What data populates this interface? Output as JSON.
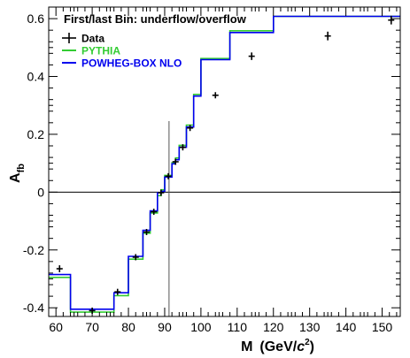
{
  "chart_data": {
    "type": "line",
    "title": "First/last Bin: underflow/overflow",
    "xlabel_main": "M",
    "xlabel_unit_open": "(GeV/",
    "xlabel_unit_c": "c",
    "xlabel_unit_exp": "2",
    "xlabel_unit_close": ")",
    "ylabel_main": "A",
    "ylabel_sub": "fb",
    "xlim": [
      58,
      155
    ],
    "ylim": [
      -0.43,
      0.64
    ],
    "xticks": [
      60,
      70,
      80,
      90,
      100,
      110,
      120,
      130,
      140,
      150
    ],
    "yticks": [
      -0.4,
      -0.2,
      0,
      0.2,
      0.4,
      0.6
    ],
    "ytick_labels": [
      "-0.4",
      "-0.2",
      "0",
      "0.2",
      "0.4",
      "0.6"
    ],
    "vertical_marker_x": 91.2,
    "horizontal_marker_y": 0,
    "legend": {
      "position": "top-left",
      "entries": [
        {
          "label": "Data",
          "color": "#000000",
          "style": "cross"
        },
        {
          "label": "PYTHIA",
          "color": "#33cc33",
          "style": "line"
        },
        {
          "label": "POWHEG-BOX NLO",
          "color": "#0000ee",
          "style": "line"
        }
      ]
    },
    "bin_edges": [
      58,
      64,
      76,
      80,
      84,
      86,
      88,
      89,
      90,
      92,
      93,
      94,
      96,
      98,
      100,
      108,
      120,
      150,
      155
    ],
    "series": [
      {
        "name": "PYTHIA",
        "color": "#33cc33",
        "values": [
          -0.295,
          -0.415,
          -0.358,
          -0.232,
          -0.142,
          -0.072,
          -0.012,
          0.008,
          0.058,
          0.102,
          0.118,
          0.162,
          0.232,
          0.338,
          0.462,
          0.558,
          0.608,
          0.608
        ]
      },
      {
        "name": "POWHEG-BOX NLO",
        "color": "#0000ee",
        "values": [
          -0.285,
          -0.405,
          -0.348,
          -0.222,
          -0.132,
          -0.065,
          -0.002,
          0.003,
          0.052,
          0.098,
          0.112,
          0.155,
          0.225,
          0.332,
          0.458,
          0.552,
          0.608,
          0.608
        ]
      }
    ],
    "data_points": {
      "name": "Data",
      "color": "#000000",
      "x": [
        61,
        70,
        77,
        82,
        85,
        87,
        89,
        91,
        93,
        95,
        97,
        104,
        114,
        135,
        152.5
      ],
      "y": [
        -0.265,
        -0.41,
        -0.345,
        -0.225,
        -0.138,
        -0.068,
        -0.002,
        0.055,
        0.105,
        0.155,
        0.222,
        0.335,
        0.47,
        0.54,
        0.595
      ],
      "yerr": [
        0.012,
        0.01,
        0.01,
        0.01,
        0.01,
        0.01,
        0.01,
        0.01,
        0.01,
        0.01,
        0.01,
        0.01,
        0.013,
        0.015,
        0.015
      ]
    }
  }
}
